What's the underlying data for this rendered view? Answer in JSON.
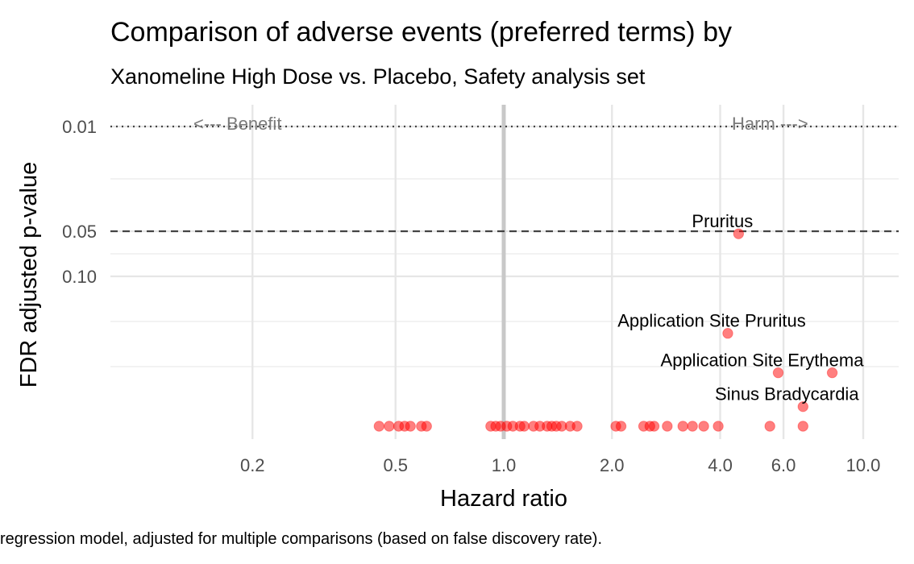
{
  "chart_data": {
    "type": "scatter",
    "title": "Comparison of adverse events (preferred terms) by",
    "subtitle": "Xanomeline High Dose vs. Placebo, Safety analysis set",
    "xlabel": "Hazard ratio",
    "ylabel": "FDR adjusted p-value",
    "caption": "regression model, adjusted for multiple comparisons (based on false discovery rate).",
    "x_scale": "log",
    "y_scale": "reverse-log",
    "xlim": [
      0.14,
      13.0
    ],
    "ylim": [
      0.0085,
      1.0
    ],
    "x_ticks": [
      0.2,
      0.5,
      1.0,
      2.0,
      4.0,
      6.0,
      10.0
    ],
    "x_tick_labels": [
      "0.2",
      "0.5",
      "1.0",
      "2.0",
      "4.0",
      "6.0",
      "10.0"
    ],
    "y_ticks": [
      0.01,
      0.05,
      0.1
    ],
    "y_tick_labels": [
      "0.01",
      "0.05",
      "0.10"
    ],
    "reference_lines": {
      "vertical_x": 1.0,
      "dotted_y": 0.01,
      "dashed_y": 0.05
    },
    "direction_labels": {
      "benefit": "<--- Benefit",
      "harm": "Harm --->"
    },
    "point_color": "#ff0000",
    "labeled_points": [
      {
        "label": "Pruritus",
        "x": 4.5,
        "y": 0.052
      },
      {
        "label": "Application Site Pruritus",
        "x": 4.2,
        "y": 0.24
      },
      {
        "label": "Application Site Erythema",
        "x": 5.8,
        "y": 0.44
      },
      {
        "label": "Sinus Bradycardia",
        "x": 6.8,
        "y": 0.74
      }
    ],
    "points": [
      {
        "x": 4.5,
        "y": 0.052
      },
      {
        "x": 4.2,
        "y": 0.24
      },
      {
        "x": 5.8,
        "y": 0.44
      },
      {
        "x": 8.2,
        "y": 0.44
      },
      {
        "x": 6.8,
        "y": 0.74
      },
      {
        "x": 0.45,
        "y": 1.0
      },
      {
        "x": 0.48,
        "y": 1.0
      },
      {
        "x": 0.51,
        "y": 1.0
      },
      {
        "x": 0.53,
        "y": 1.0
      },
      {
        "x": 0.55,
        "y": 1.0
      },
      {
        "x": 0.59,
        "y": 1.0
      },
      {
        "x": 0.61,
        "y": 1.0
      },
      {
        "x": 0.92,
        "y": 1.0
      },
      {
        "x": 0.95,
        "y": 1.0
      },
      {
        "x": 0.98,
        "y": 1.0
      },
      {
        "x": 1.02,
        "y": 1.0
      },
      {
        "x": 1.06,
        "y": 1.0
      },
      {
        "x": 1.11,
        "y": 1.0
      },
      {
        "x": 1.14,
        "y": 1.0
      },
      {
        "x": 1.21,
        "y": 1.0
      },
      {
        "x": 1.26,
        "y": 1.0
      },
      {
        "x": 1.32,
        "y": 1.0
      },
      {
        "x": 1.36,
        "y": 1.0
      },
      {
        "x": 1.4,
        "y": 1.0
      },
      {
        "x": 1.45,
        "y": 1.0
      },
      {
        "x": 1.53,
        "y": 1.0
      },
      {
        "x": 1.6,
        "y": 1.0
      },
      {
        "x": 2.05,
        "y": 1.0
      },
      {
        "x": 2.12,
        "y": 1.0
      },
      {
        "x": 2.45,
        "y": 1.0
      },
      {
        "x": 2.55,
        "y": 1.0
      },
      {
        "x": 2.62,
        "y": 1.0
      },
      {
        "x": 2.85,
        "y": 1.0
      },
      {
        "x": 3.15,
        "y": 1.0
      },
      {
        "x": 3.35,
        "y": 1.0
      },
      {
        "x": 3.6,
        "y": 1.0
      },
      {
        "x": 3.95,
        "y": 1.0
      },
      {
        "x": 5.5,
        "y": 1.0
      },
      {
        "x": 6.8,
        "y": 1.0
      }
    ]
  }
}
